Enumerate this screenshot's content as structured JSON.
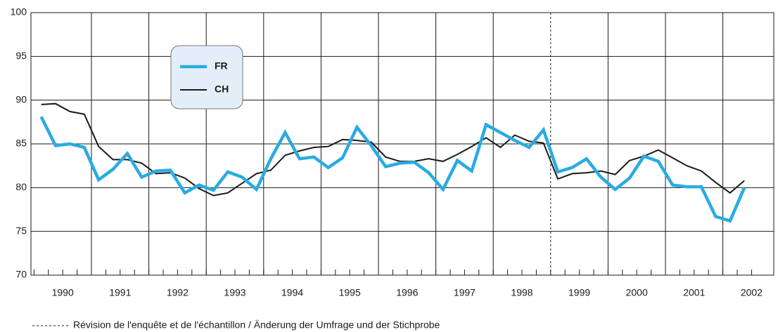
{
  "chart_data": {
    "type": "line",
    "year_labels": [
      "1990",
      "1991",
      "1992",
      "1993",
      "1994",
      "1995",
      "1996",
      "1997",
      "1998",
      "1999",
      "2000",
      "2001",
      "2002"
    ],
    "series": [
      {
        "name": "FR",
        "color": "#29abe2",
        "values": [
          88.1,
          84.8,
          85.0,
          84.6,
          80.9,
          82.1,
          83.9,
          81.2,
          81.9,
          82.0,
          79.4,
          80.3,
          79.7,
          81.8,
          81.2,
          79.8,
          83.3,
          86.3,
          83.3,
          83.5,
          82.3,
          83.4,
          86.9,
          84.8,
          82.4,
          82.8,
          82.9,
          81.7,
          79.8,
          83.1,
          81.9,
          87.2,
          86.3,
          85.4,
          84.6,
          86.6,
          81.8,
          82.3,
          83.3,
          81.2,
          79.8,
          81.1,
          83.6,
          83.0,
          80.3,
          80.1,
          80.1,
          76.7,
          76.2,
          80.0
        ]
      },
      {
        "name": "CH",
        "color": "#1a1a1a",
        "values": [
          89.5,
          89.6,
          88.7,
          88.4,
          84.7,
          83.2,
          83.2,
          82.8,
          81.6,
          81.7,
          81.1,
          79.9,
          79.1,
          79.4,
          80.5,
          81.6,
          82.0,
          83.7,
          84.2,
          84.6,
          84.7,
          85.5,
          85.4,
          85.2,
          83.5,
          83.0,
          83.0,
          83.3,
          83.0,
          83.8,
          84.7,
          85.7,
          84.6,
          86.0,
          85.3,
          85.1,
          81.0,
          81.6,
          81.7,
          81.9,
          81.5,
          83.1,
          83.6,
          84.3,
          83.4,
          82.5,
          81.9,
          80.6,
          79.4,
          80.8
        ]
      }
    ],
    "ylim": [
      70,
      100
    ],
    "yticks": [
      70,
      75,
      80,
      85,
      90,
      95,
      100
    ],
    "grid": true,
    "revision_note": "Révision de l'enquête et de l'échantillon / Änderung der Umfrage und der Stichprobe"
  }
}
